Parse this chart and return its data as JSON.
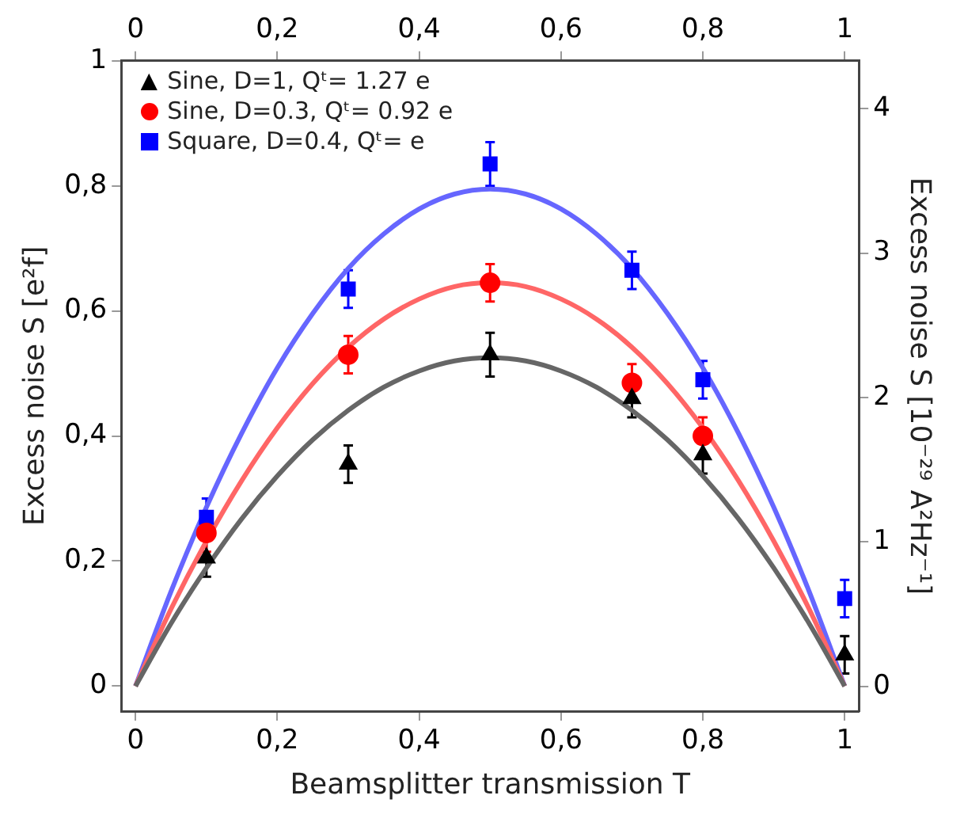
{
  "chart_data": {
    "type": "scatter",
    "xlabel": "Beamsplitter transmission T",
    "ylabel": "Excess noise S [e²f]",
    "y2label": "Excess noise S [10⁻²⁹ A²Hz⁻¹]",
    "xlim": [
      -0.02,
      1.02
    ],
    "xticks": [
      {
        "value": 0,
        "label": "0"
      },
      {
        "value": 0.2,
        "label": "0,2"
      },
      {
        "value": 0.4,
        "label": "0,4"
      },
      {
        "value": 0.6,
        "label": "0,6"
      },
      {
        "value": 0.8,
        "label": "0,8"
      },
      {
        "value": 1,
        "label": "1"
      }
    ],
    "x2lim": [
      -0.02,
      1.02
    ],
    "x2ticks": [
      {
        "value": 0,
        "label": "0"
      },
      {
        "value": 0.2,
        "label": "0,2"
      },
      {
        "value": 0.4,
        "label": "0,4"
      },
      {
        "value": 0.6,
        "label": "0,6"
      },
      {
        "value": 0.8,
        "label": "0,8"
      },
      {
        "value": 1,
        "label": "1"
      }
    ],
    "ylim": [
      -0.04,
      1
    ],
    "yticks": [
      {
        "value": 0,
        "label": "0"
      },
      {
        "value": 0.2,
        "label": "0,2"
      },
      {
        "value": 0.4,
        "label": "0,4"
      },
      {
        "value": 0.6,
        "label": "0,6"
      },
      {
        "value": 0.8,
        "label": "0,8"
      },
      {
        "value": 1,
        "label": "1"
      }
    ],
    "y2lim": [
      -0.17,
      4.33
    ],
    "y2ticks": [
      0,
      1,
      2,
      3,
      4
    ],
    "legend": "top left",
    "series": [
      {
        "type": "line",
        "color": "#666666",
        "marker": "none",
        "x": [
          0,
          0.05,
          0.1,
          0.15,
          0.2,
          0.25,
          0.3,
          0.35,
          0.4,
          0.45,
          0.5,
          0.55,
          0.6,
          0.65,
          0.7,
          0.75,
          0.8,
          0.85,
          0.9,
          0.95,
          1
        ],
        "values": [
          0,
          0.1,
          0.189,
          0.268,
          0.336,
          0.394,
          0.441,
          0.478,
          0.504,
          0.52,
          0.525,
          0.52,
          0.504,
          0.478,
          0.441,
          0.394,
          0.336,
          0.268,
          0.189,
          0.1,
          0
        ]
      },
      {
        "type": "line",
        "color": "#ff6666",
        "marker": "none",
        "x": [
          0,
          0.05,
          0.1,
          0.15,
          0.2,
          0.25,
          0.3,
          0.35,
          0.4,
          0.45,
          0.5,
          0.55,
          0.6,
          0.65,
          0.7,
          0.75,
          0.8,
          0.85,
          0.9,
          0.95,
          1
        ],
        "values": [
          0,
          0.123,
          0.232,
          0.329,
          0.413,
          0.484,
          0.542,
          0.587,
          0.619,
          0.639,
          0.645,
          0.639,
          0.619,
          0.587,
          0.542,
          0.484,
          0.413,
          0.329,
          0.232,
          0.123,
          0
        ]
      },
      {
        "type": "line",
        "color": "#6666ff",
        "marker": "none",
        "x": [
          0,
          0.05,
          0.1,
          0.15,
          0.2,
          0.25,
          0.3,
          0.35,
          0.4,
          0.45,
          0.5,
          0.55,
          0.6,
          0.65,
          0.7,
          0.75,
          0.8,
          0.85,
          0.9,
          0.95,
          1
        ],
        "values": [
          0,
          0.151,
          0.286,
          0.405,
          0.509,
          0.596,
          0.668,
          0.723,
          0.763,
          0.787,
          0.795,
          0.787,
          0.763,
          0.723,
          0.668,
          0.596,
          0.509,
          0.405,
          0.286,
          0.151,
          0
        ]
      },
      {
        "name": "Sine, D=1, Qᵗ= 1.27 e",
        "color": "#000000",
        "marker": "triangle",
        "x": [
          0.1,
          0.3,
          0.5,
          0.7,
          0.8,
          1
        ],
        "values": [
          0.205,
          0.355,
          0.53,
          0.46,
          0.37,
          0.05
        ],
        "errors": [
          0.03,
          0.03,
          0.035,
          0.03,
          0.03,
          0.03
        ]
      },
      {
        "name": "Sine, D=0.3, Qᵗ= 0.92 e",
        "color": "#ff0000",
        "marker": "circle",
        "x": [
          0.1,
          0.3,
          0.5,
          0.7,
          0.8
        ],
        "values": [
          0.245,
          0.53,
          0.645,
          0.485,
          0.4
        ],
        "errors": [
          0.03,
          0.03,
          0.03,
          0.03,
          0.03
        ]
      },
      {
        "name": "Square, D=0.4, Qᵗ= e",
        "color": "#0000ff",
        "marker": "square",
        "x": [
          0.1,
          0.3,
          0.5,
          0.7,
          0.8,
          1
        ],
        "values": [
          0.27,
          0.635,
          0.835,
          0.665,
          0.49,
          0.14
        ],
        "errors": [
          0.03,
          0.03,
          0.035,
          0.03,
          0.03,
          0.03
        ]
      }
    ]
  }
}
